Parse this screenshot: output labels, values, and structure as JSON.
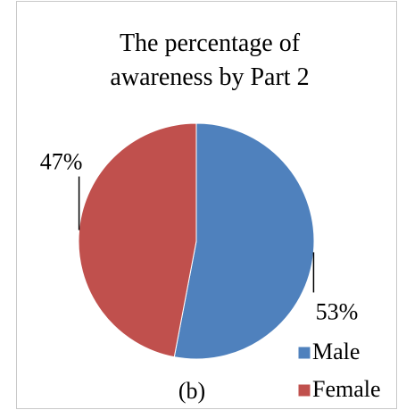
{
  "chart_data": {
    "type": "pie",
    "title": "The percentage of awareness by Part 2",
    "categories": [
      "Male",
      "Female"
    ],
    "values": [
      53,
      47
    ],
    "value_labels": [
      "53%",
      "47%"
    ],
    "colors": [
      "#4f81bd",
      "#c0504d"
    ],
    "legend": "bottom-right",
    "caption": "(b)"
  }
}
